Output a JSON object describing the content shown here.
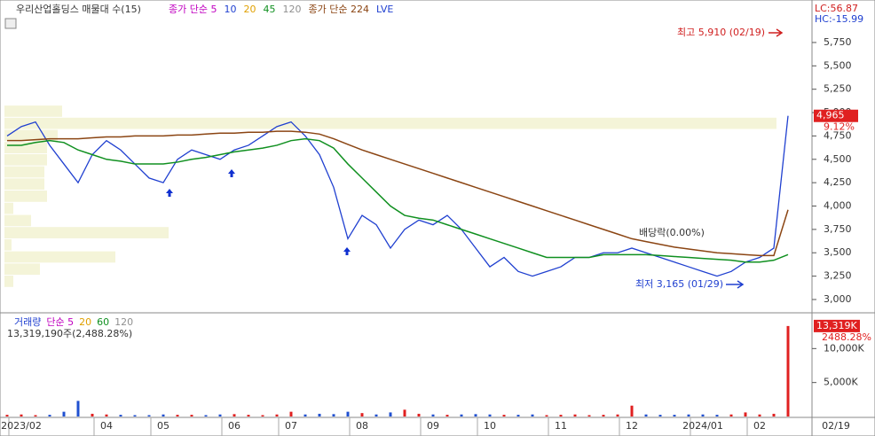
{
  "chart_data": {
    "type": "line",
    "title": "우리산업홀딩스 매물대 수(15)",
    "legend_items": [
      {
        "text": "종가 단순 5",
        "color": "#c000c0"
      },
      {
        "text": "10",
        "color": "#2040d0"
      },
      {
        "text": "20",
        "color": "#e0a000"
      },
      {
        "text": "45",
        "color": "#109020"
      },
      {
        "text": "120",
        "color": "#909090"
      },
      {
        "text": "종가 단순 224",
        "color": "#8b4513"
      },
      {
        "text": "LVE",
        "color": "#2040d0"
      }
    ],
    "info": {
      "lc": "LC:56.87",
      "hc": "HC:-15.99",
      "price_box": "4,965",
      "change": "9.12%"
    },
    "annotations": {
      "high": "최고 5,910 (02/19)",
      "low": "최저 3,165 (01/29)",
      "dividend": "배당락(0.00%)"
    },
    "categories": [
      null,
      "2023/02",
      null,
      null,
      null,
      null,
      null,
      "04",
      null,
      null,
      null,
      "05",
      null,
      null,
      null,
      null,
      "06",
      null,
      null,
      null,
      "07",
      null,
      null,
      null,
      null,
      "08",
      null,
      null,
      null,
      null,
      "09",
      null,
      null,
      null,
      "10",
      null,
      null,
      null,
      null,
      "11",
      null,
      null,
      null,
      null,
      "12",
      null,
      null,
      null,
      null,
      "2024/01",
      null,
      null,
      null,
      "02",
      null,
      null
    ],
    "x_end_label": "02/19",
    "ylim": [
      2867,
      6015
    ],
    "yticks": [
      {
        "value": 3000,
        "label": "3,000"
      },
      {
        "value": 3250,
        "label": "3,250"
      },
      {
        "value": 3500,
        "label": "3,500"
      },
      {
        "value": 3750,
        "label": "3,750"
      },
      {
        "value": 4000,
        "label": "4,000"
      },
      {
        "value": 4250,
        "label": "4,250"
      },
      {
        "value": 4500,
        "label": "4,500"
      },
      {
        "value": 4750,
        "label": "4,750"
      },
      {
        "value": 5000,
        "label": "5,000"
      },
      {
        "value": 5250,
        "label": "5,250"
      },
      {
        "value": 5500,
        "label": "5,500"
      },
      {
        "value": 5750,
        "label": "5,750"
      }
    ],
    "series": [
      {
        "color": "#2040d0",
        "values": [
          4750,
          4850,
          4900,
          4650,
          4450,
          4250,
          4550,
          4700,
          4600,
          4450,
          4300,
          4250,
          4500,
          4600,
          4550,
          4500,
          4600,
          4650,
          4750,
          4850,
          4900,
          4750,
          4550,
          4200,
          3650,
          3900,
          3800,
          3550,
          3750,
          3850,
          3800,
          3900,
          3750,
          3550,
          3350,
          3450,
          3300,
          3250,
          3300,
          3350,
          3450,
          3450,
          3500,
          3500,
          3550,
          3500,
          3450,
          3400,
          3350,
          3300,
          3250,
          3300,
          3400,
          3450,
          3550,
          4965
        ]
      },
      {
        "color": "#109020",
        "values": [
          4650,
          4650,
          4680,
          4700,
          4680,
          4600,
          4550,
          4500,
          4480,
          4450,
          4450,
          4450,
          4470,
          4500,
          4520,
          4550,
          4580,
          4600,
          4620,
          4650,
          4700,
          4720,
          4700,
          4620,
          4450,
          4300,
          4150,
          4000,
          3900,
          3870,
          3850,
          3800,
          3750,
          3700,
          3650,
          3600,
          3550,
          3500,
          3450,
          3450,
          3450,
          3450,
          3480,
          3480,
          3480,
          3480,
          3470,
          3460,
          3450,
          3440,
          3430,
          3420,
          3400,
          3400,
          3420,
          3480
        ]
      },
      {
        "color": "#8b4513",
        "values": [
          4700,
          4700,
          4710,
          4720,
          4720,
          4720,
          4730,
          4740,
          4740,
          4750,
          4750,
          4750,
          4760,
          4760,
          4770,
          4780,
          4780,
          4790,
          4790,
          4800,
          4800,
          4790,
          4770,
          4720,
          4660,
          4600,
          4550,
          4500,
          4450,
          4400,
          4350,
          4300,
          4250,
          4200,
          4150,
          4100,
          4050,
          4000,
          3950,
          3900,
          3850,
          3800,
          3750,
          3700,
          3650,
          3620,
          3590,
          3560,
          3540,
          3520,
          3500,
          3490,
          3480,
          3470,
          3470,
          3960
        ]
      }
    ],
    "volume_profile": {
      "color": "#f4f4d8",
      "bins": [
        3130,
        3260,
        3390,
        3520,
        3650,
        3780,
        3910,
        4040,
        4170,
        4300,
        4430,
        4560,
        4690,
        4820,
        4950,
        5080
      ],
      "values": [
        10,
        40,
        125,
        8,
        185,
        30,
        10,
        48,
        45,
        45,
        48,
        48,
        60,
        870,
        65
      ]
    },
    "volume": {
      "legend_items": [
        {
          "text": "거래량",
          "color": "#2040d0"
        },
        {
          "text": "단순 5",
          "color": "#c000c0"
        },
        {
          "text": "20",
          "color": "#e0a000"
        },
        {
          "text": "60",
          "color": "#109020"
        },
        {
          "text": "120",
          "color": "#909090"
        }
      ],
      "summary": "13,319,190주(2,488.28%)",
      "box": "13,319K",
      "change": "2488.28%",
      "ylim": [
        0,
        15000
      ],
      "yticks": [
        {
          "value": 5000,
          "label": "5,000K"
        },
        {
          "value": 10000,
          "label": "10,000K"
        }
      ],
      "values": [
        250,
        300,
        200,
        250,
        700,
        2300,
        400,
        300,
        250,
        200,
        200,
        300,
        250,
        250,
        200,
        300,
        350,
        250,
        200,
        300,
        700,
        300,
        400,
        350,
        700,
        500,
        300,
        600,
        1000,
        400,
        300,
        250,
        300,
        350,
        300,
        250,
        250,
        300,
        200,
        250,
        300,
        200,
        250,
        300,
        1600,
        300,
        250,
        250,
        300,
        300,
        250,
        300,
        600,
        300,
        400,
        13319
      ]
    }
  }
}
